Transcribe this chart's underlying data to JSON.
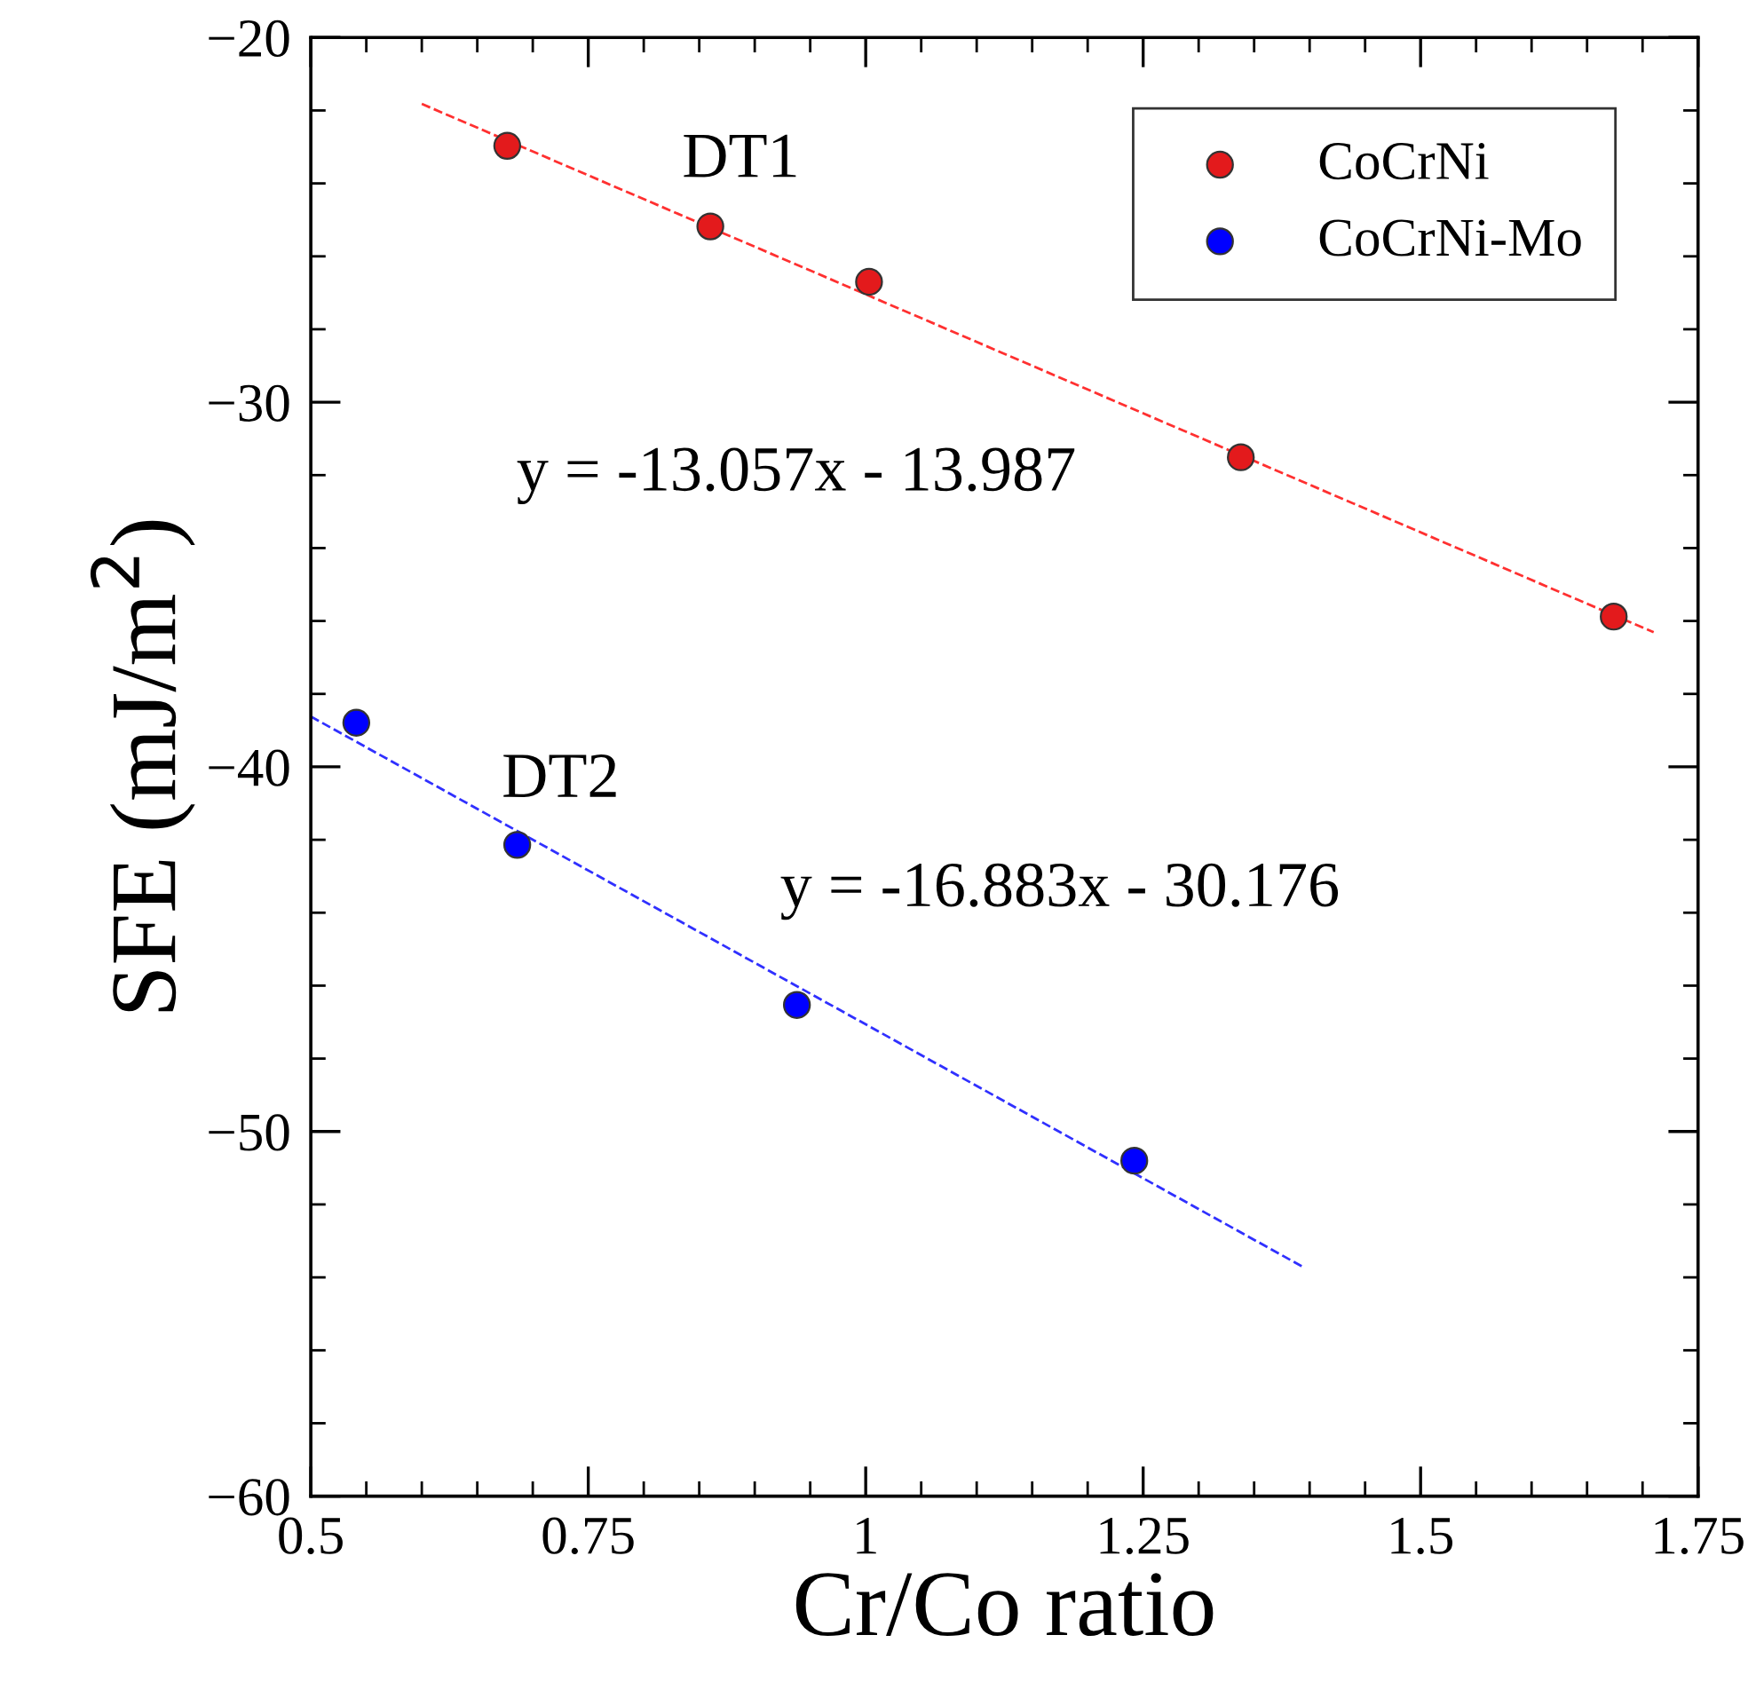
{
  "chart_data": {
    "type": "scatter",
    "xlabel": "Cr/Co ratio",
    "ylabel": "SFE (mJ/m$^{2}$)",
    "series": [
      {
        "name": "CoCrNi",
        "color": "#e31a1c",
        "x": [
          0.677,
          0.86,
          1.003,
          1.338,
          1.674
        ],
        "values": [
          -22.97,
          -25.18,
          -26.7,
          -31.51,
          -35.88
        ]
      },
      {
        "name": "CoCrNi-Mo",
        "color": "#0000ff",
        "x": [
          0.541,
          0.686,
          0.938,
          1.242
        ],
        "values": [
          -38.79,
          -42.14,
          -46.53,
          -50.8
        ]
      },
      {
        "type": "line",
        "color": "#ff3030",
        "line_style": "dashed",
        "marker": "none",
        "x": [
          0.6,
          1.71
        ],
        "values": [
          -21.82,
          -36.31
        ]
      },
      {
        "type": "line",
        "color": "#3030ff",
        "line_style": "dashed",
        "marker": "none",
        "x": [
          0.5,
          1.395
        ],
        "values": [
          -38.62,
          -53.73
        ]
      }
    ],
    "annotations": [
      "DT1",
      "y = -13.057x - 13.987",
      "DT2",
      "y = -16.883x - 30.176"
    ],
    "xlim": [
      0.5,
      1.75
    ],
    "ylim": [
      -60,
      -20
    ],
    "xticks": [
      0.5,
      0.75,
      1,
      1.25,
      1.5,
      1.75
    ],
    "yticks": [
      {
        "value": -60,
        "label": "−60"
      },
      {
        "value": -50,
        "label": "−50"
      },
      {
        "value": -40,
        "label": "−40"
      },
      {
        "value": -30,
        "label": "−30"
      },
      {
        "value": -20,
        "label": "−20"
      }
    ],
    "marker": "circle",
    "grid": false,
    "legend": "top right"
  }
}
